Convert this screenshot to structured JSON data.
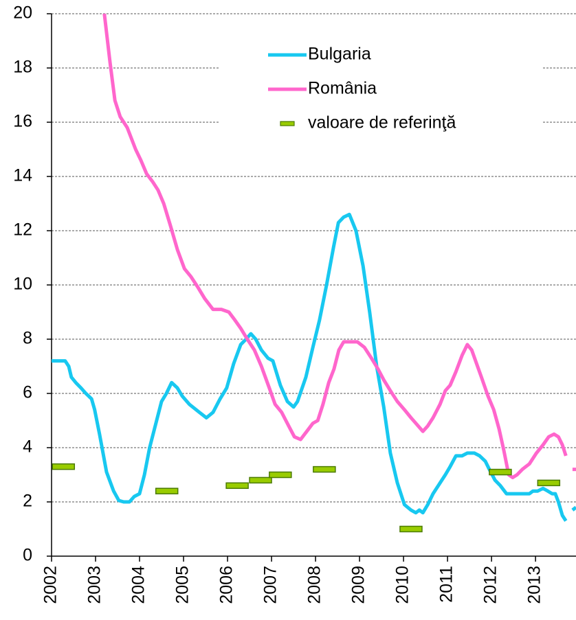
{
  "chart_data": {
    "type": "line",
    "xlim": [
      2002,
      2013.92
    ],
    "xticks": [
      2002,
      2003,
      2004,
      2005,
      2006,
      2007,
      2008,
      2009,
      2010,
      2011,
      2012,
      2013
    ],
    "ylim": [
      0,
      20
    ],
    "yticks": [
      0,
      2,
      4,
      6,
      8,
      10,
      12,
      14,
      16,
      18,
      20
    ],
    "grid": true,
    "legend": "upper-right",
    "series": [
      {
        "name": "Bulgaria",
        "color": "#18c8f0",
        "style": "line",
        "x": [
          2002.0,
          2002.31,
          2002.39,
          2002.45,
          2002.55,
          2002.67,
          2002.78,
          2002.91,
          2002.98,
          2003.09,
          2003.25,
          2003.41,
          2003.53,
          2003.64,
          2003.77,
          2003.88,
          2004.0,
          2004.11,
          2004.23,
          2004.34,
          2004.5,
          2004.61,
          2004.73,
          2004.86,
          2004.97,
          2005.13,
          2005.36,
          2005.52,
          2005.67,
          2005.83,
          2005.98,
          2006.14,
          2006.3,
          2006.42,
          2006.53,
          2006.64,
          2006.77,
          2006.92,
          2007.03,
          2007.2,
          2007.36,
          2007.5,
          2007.59,
          2007.78,
          2007.94,
          2008.09,
          2008.25,
          2008.41,
          2008.52,
          2008.64,
          2008.77,
          2008.92,
          2009.08,
          2009.23,
          2009.39,
          2009.55,
          2009.7,
          2009.86,
          2010.02,
          2010.17,
          2010.28,
          2010.36,
          2010.44,
          2010.55,
          2010.67,
          2010.83,
          2010.95,
          2011.06,
          2011.19,
          2011.33,
          2011.45,
          2011.61,
          2011.73,
          2011.86,
          2011.95,
          2012.08,
          2012.2,
          2012.34,
          2012.52,
          2012.7,
          2012.86,
          2012.94,
          2013.05,
          2013.17,
          2013.28,
          2013.38,
          2013.45,
          2013.52,
          2013.61,
          2013.69,
          2013.76,
          2013.84,
          2013.92
        ],
        "values": [
          7.2,
          7.2,
          7.0,
          6.6,
          6.4,
          6.2,
          6.0,
          5.8,
          5.4,
          4.5,
          3.1,
          2.4,
          2.05,
          2.0,
          2.0,
          2.2,
          2.3,
          3.0,
          4.0,
          4.7,
          5.7,
          6.0,
          6.4,
          6.2,
          5.9,
          5.6,
          5.3,
          5.1,
          5.3,
          5.8,
          6.2,
          7.1,
          7.8,
          8.0,
          8.2,
          8.0,
          7.6,
          7.3,
          7.2,
          6.3,
          5.7,
          5.5,
          5.7,
          6.6,
          7.7,
          8.7,
          10.0,
          11.4,
          12.3,
          12.5,
          12.6,
          12.0,
          10.7,
          9.0,
          7.0,
          5.5,
          3.8,
          2.7,
          1.9,
          1.7,
          1.6,
          1.7,
          1.6,
          1.9,
          2.3,
          2.7,
          3.0,
          3.3,
          3.7,
          3.7,
          3.8,
          3.8,
          3.7,
          3.5,
          3.2,
          2.8,
          2.6,
          2.3,
          2.3,
          2.3,
          2.3,
          2.4,
          2.4,
          2.5,
          2.4,
          2.3,
          2.3,
          2.0,
          1.5,
          1.3,
          null,
          1.7,
          1.8
        ]
      },
      {
        "name": "România",
        "color": "#ff66cc",
        "style": "line",
        "x": [
          2003.2,
          2003.33,
          2003.44,
          2003.56,
          2003.72,
          2003.91,
          2004.03,
          2004.16,
          2004.3,
          2004.42,
          2004.55,
          2004.7,
          2004.86,
          2005.02,
          2005.17,
          2005.33,
          2005.48,
          2005.67,
          2005.86,
          2006.03,
          2006.17,
          2006.3,
          2006.45,
          2006.61,
          2006.77,
          2006.95,
          2007.08,
          2007.23,
          2007.39,
          2007.52,
          2007.66,
          2007.8,
          2007.94,
          2008.05,
          2008.17,
          2008.3,
          2008.42,
          2008.53,
          2008.64,
          2008.8,
          2008.95,
          2009.11,
          2009.27,
          2009.42,
          2009.55,
          2009.7,
          2009.86,
          2010.02,
          2010.17,
          2010.28,
          2010.44,
          2010.55,
          2010.67,
          2010.83,
          2010.95,
          2011.06,
          2011.19,
          2011.33,
          2011.45,
          2011.55,
          2011.66,
          2011.77,
          2011.92,
          2012.05,
          2012.17,
          2012.28,
          2012.39,
          2012.48,
          2012.58,
          2012.7,
          2012.86,
          2013.02,
          2013.17,
          2013.3,
          2013.42,
          2013.52,
          2013.61,
          2013.69,
          2013.76,
          2013.84,
          2013.92
        ],
        "values": [
          20.0,
          18.2,
          16.8,
          16.2,
          15.8,
          15.0,
          14.6,
          14.1,
          13.8,
          13.5,
          13.0,
          12.2,
          11.3,
          10.6,
          10.3,
          9.9,
          9.5,
          9.1,
          9.1,
          9.0,
          8.7,
          8.4,
          8.0,
          7.6,
          7.0,
          6.2,
          5.6,
          5.3,
          4.8,
          4.4,
          4.3,
          4.6,
          4.9,
          5.0,
          5.6,
          6.4,
          6.9,
          7.6,
          7.9,
          7.9,
          7.9,
          7.7,
          7.3,
          6.9,
          6.5,
          6.1,
          5.7,
          5.4,
          5.1,
          4.9,
          4.6,
          4.8,
          5.1,
          5.6,
          6.1,
          6.3,
          6.8,
          7.4,
          7.8,
          7.6,
          7.1,
          6.6,
          5.9,
          5.4,
          4.7,
          3.9,
          3.0,
          2.9,
          3.0,
          3.2,
          3.4,
          3.8,
          4.1,
          4.4,
          4.5,
          4.4,
          4.1,
          3.7,
          null,
          3.2,
          3.2
        ]
      },
      {
        "name": "valoare de referinţă",
        "color": "#99cc00",
        "style": "marker",
        "x": [
          2002.27,
          2004.62,
          2006.22,
          2006.75,
          2007.2,
          2008.2,
          2010.17,
          2012.2,
          2013.3
        ],
        "values": [
          3.3,
          2.4,
          2.6,
          2.8,
          3.0,
          3.2,
          1.0,
          3.1,
          2.7
        ]
      }
    ]
  }
}
